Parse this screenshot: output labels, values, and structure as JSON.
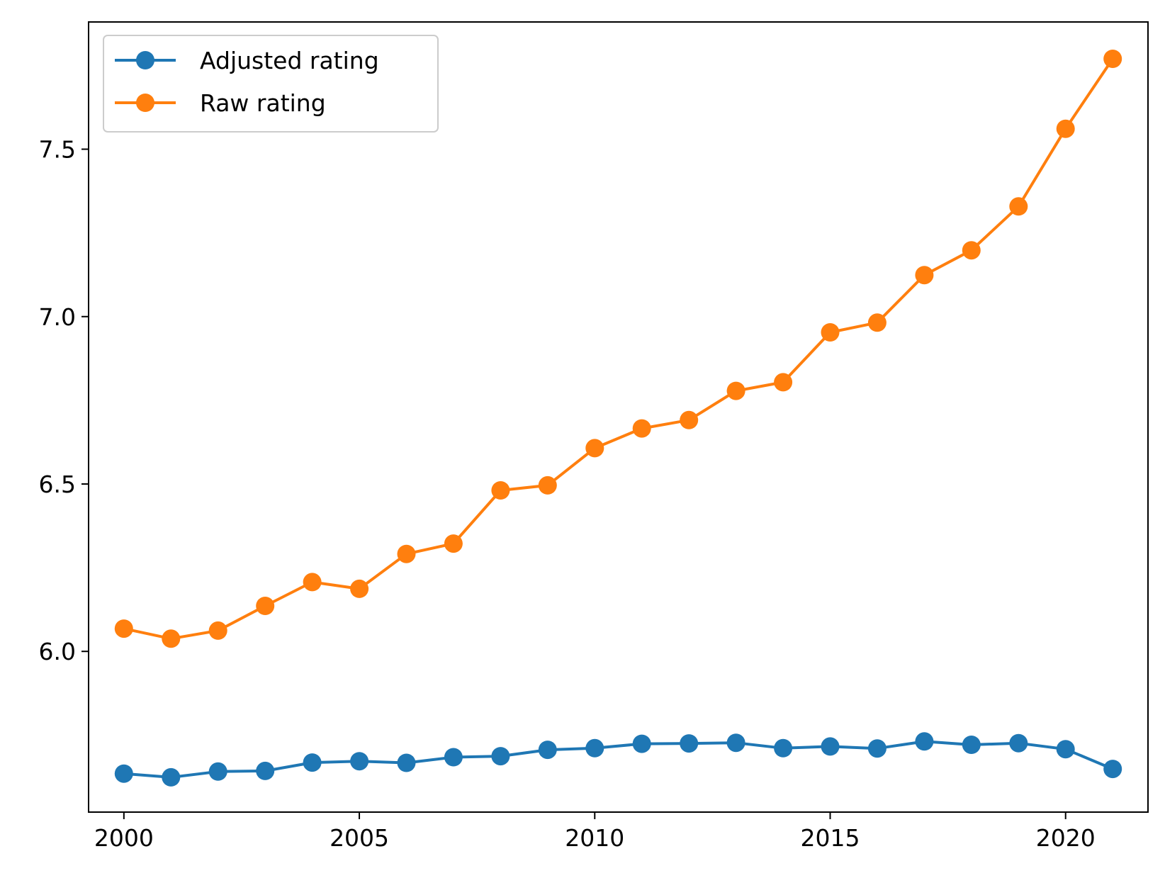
{
  "chart_data": {
    "type": "line",
    "title": "",
    "xlabel": "",
    "ylabel": "",
    "xlim": [
      1999.25,
      2021.75
    ],
    "ylim": [
      5.52,
      7.88
    ],
    "x": [
      2000,
      2001,
      2002,
      2003,
      2004,
      2005,
      2006,
      2007,
      2008,
      2009,
      2010,
      2011,
      2012,
      2013,
      2014,
      2015,
      2016,
      2017,
      2018,
      2019,
      2020,
      2021
    ],
    "x_ticks": [
      2000,
      2005,
      2010,
      2015,
      2020
    ],
    "x_tick_labels": [
      "2000",
      "2005",
      "2010",
      "2015",
      "2020"
    ],
    "y_ticks": [
      6.0,
      6.5,
      7.0,
      7.5
    ],
    "y_tick_labels": [
      "6.0",
      "6.5",
      "7.0",
      "7.5"
    ],
    "grid": false,
    "legend_position": "upper-left",
    "series": [
      {
        "name": "Adjusted rating",
        "color": "#1f77b4",
        "marker": "circle",
        "values": [
          5.635,
          5.624,
          5.641,
          5.643,
          5.668,
          5.672,
          5.667,
          5.684,
          5.687,
          5.706,
          5.711,
          5.724,
          5.725,
          5.727,
          5.711,
          5.716,
          5.71,
          5.731,
          5.721,
          5.726,
          5.708,
          5.649
        ]
      },
      {
        "name": "Raw rating",
        "color": "#ff7f0e",
        "marker": "circle",
        "values": [
          6.068,
          6.038,
          6.062,
          6.136,
          6.207,
          6.187,
          6.291,
          6.322,
          6.481,
          6.496,
          6.607,
          6.666,
          6.691,
          6.778,
          6.804,
          6.953,
          6.982,
          7.124,
          7.198,
          7.329,
          7.561,
          7.77
        ]
      }
    ]
  }
}
